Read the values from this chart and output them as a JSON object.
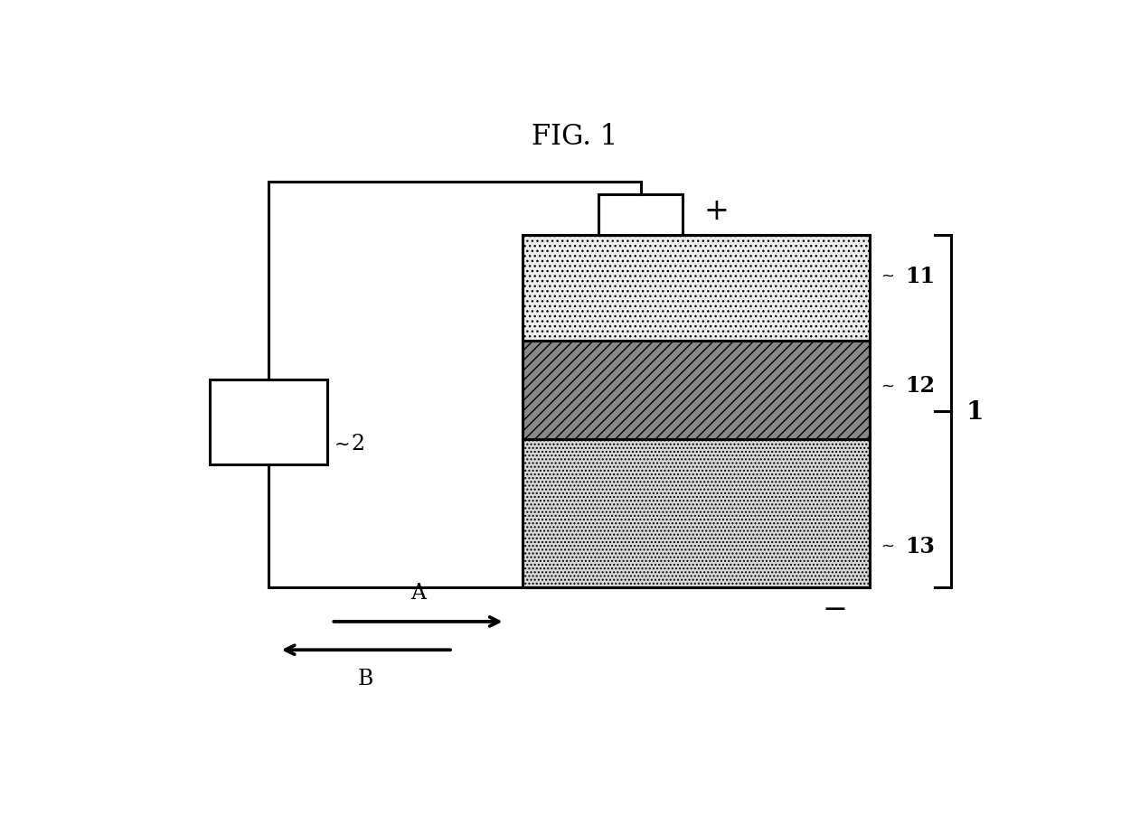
{
  "title": "FIG. 1",
  "bg_color": "#ffffff",
  "fig_width": 12.4,
  "fig_height": 9.03,
  "dpi": 100,
  "plus_label": "+",
  "minus_label": "−",
  "layer11_label": "11",
  "layer12_label": "12",
  "layer13_label": "13",
  "brace_label": "1",
  "battery_label": "2",
  "arrow_A_label": "A",
  "arrow_B_label": "B",
  "line_color": "#000000",
  "text_color": "#000000",
  "title_fontsize": 22,
  "label_fontsize": 17,
  "symbol_fontsize": 20
}
